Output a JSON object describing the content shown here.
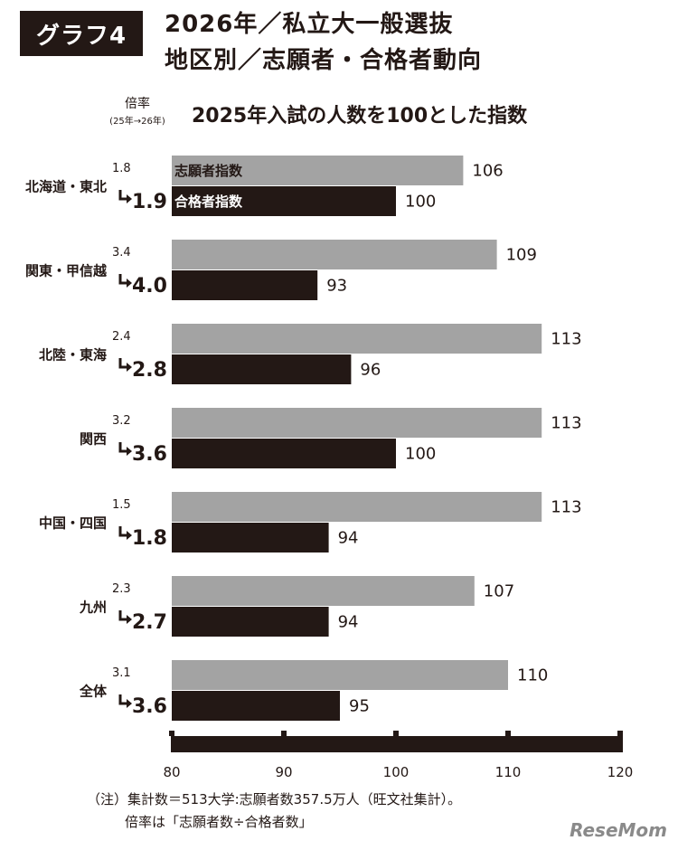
{
  "header": {
    "badge": "グラフ4",
    "title_line1": "2026年／私立大一般選抜",
    "title_line2": "地区別／志願者・合格者動向",
    "subtitle": "2025年入試の人数を100とした指数",
    "ratio_head": "倍率",
    "ratio_head_sub": "(25年→26年)"
  },
  "legend": {
    "applicants": "志願者指数",
    "accepted": "合格者指数"
  },
  "chart_data": {
    "type": "bar",
    "orientation": "horizontal",
    "title": "2025年入試の人数を100とした指数",
    "categories": [
      "北海道・東北",
      "関東・甲信越",
      "北陸・東海",
      "関西",
      "中国・四国",
      "九州",
      "全体"
    ],
    "series": [
      {
        "name": "志願者指数",
        "values": [
          106,
          109,
          113,
          113,
          113,
          107,
          110
        ],
        "color": "#a3a3a3"
      },
      {
        "name": "合格者指数",
        "values": [
          100,
          93,
          96,
          100,
          94,
          94,
          95
        ],
        "color": "#231815"
      }
    ],
    "ratio_2025": [
      "1.8",
      "3.4",
      "2.4",
      "3.2",
      "1.5",
      "2.3",
      "3.1"
    ],
    "ratio_2026": [
      "1.9",
      "4.0",
      "2.8",
      "3.6",
      "1.8",
      "2.7",
      "3.6"
    ],
    "xlim": [
      80,
      120
    ],
    "xticks": [
      80,
      90,
      100,
      110,
      120
    ],
    "grid": false
  },
  "notes": {
    "line1": "（注）集計数＝513大学:志願者数357.5万人（旺文社集計）。",
    "line2": "倍率は「志願者数÷合格者数」"
  },
  "logo": "ReseMom"
}
